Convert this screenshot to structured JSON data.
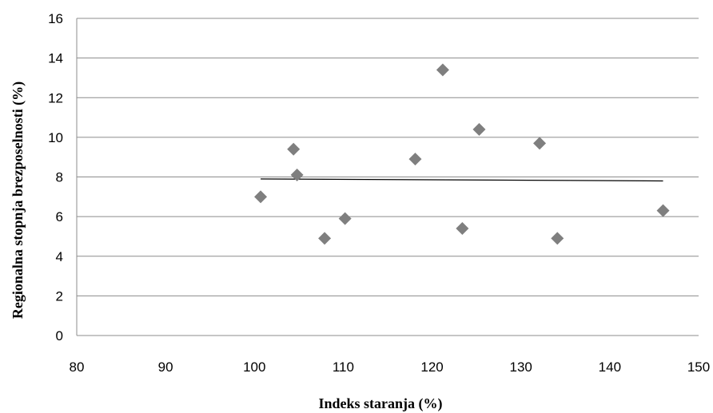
{
  "chart_data": {
    "type": "scatter",
    "title": "",
    "xlabel": "Indeks staranja (%)",
    "ylabel": "Regionalna stopnja brezposelnosti (%)",
    "xlim": [
      80,
      150
    ],
    "ylim": [
      0,
      16
    ],
    "xticks": [
      "80",
      "90",
      "100",
      "110",
      "120",
      "130",
      "140",
      "150"
    ],
    "yticks": [
      "0",
      "2",
      "4",
      "6",
      "8",
      "10",
      "12",
      "14",
      "16"
    ],
    "grid": "horizontal",
    "marker": "diamond",
    "marker_color": "#7f7f7f",
    "trendline_color": "#000000",
    "points": [
      {
        "x": 100.7,
        "y": 7.0
      },
      {
        "x": 104.4,
        "y": 9.4
      },
      {
        "x": 104.8,
        "y": 8.1
      },
      {
        "x": 107.9,
        "y": 4.9
      },
      {
        "x": 110.2,
        "y": 5.9
      },
      {
        "x": 118.1,
        "y": 8.9
      },
      {
        "x": 121.2,
        "y": 13.4
      },
      {
        "x": 123.4,
        "y": 5.4
      },
      {
        "x": 125.3,
        "y": 10.4
      },
      {
        "x": 132.1,
        "y": 9.7
      },
      {
        "x": 134.1,
        "y": 4.9
      },
      {
        "x": 146.0,
        "y": 6.3
      }
    ],
    "trendline": {
      "x": [
        100.7,
        146.0
      ],
      "y": [
        7.9,
        7.8
      ]
    }
  }
}
